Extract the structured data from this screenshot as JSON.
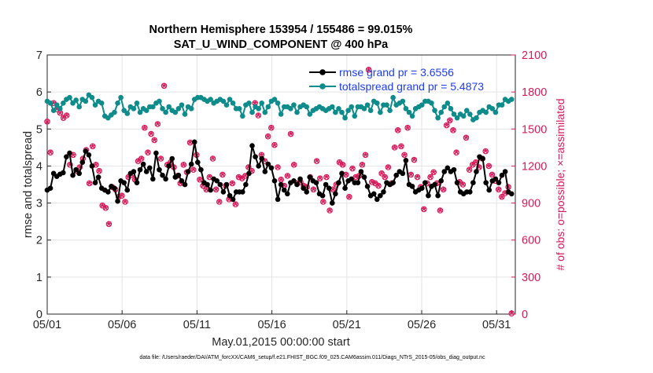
{
  "chart_data": {
    "type": "line",
    "title": [
      "Northern Hemisphere 153954 / 155486 = 99.015%",
      "SAT_U_WIND_COMPONENT @ 400 hPa"
    ],
    "xlabel": "May.01,2015 00:00:00 start",
    "ylabel": "rmse and totalspread",
    "y2label": "# of obs: o=possible; ×=assimilated",
    "footnote": "data file: /Users/raeder/DAI/ATM_forcXX/CAM6_setup/f.e21.FHIST_BGC.f09_025.CAM6assim.011/Diags_NTrS_2015-05/obs_diag_output.nc",
    "x_ticks": [
      "05/01",
      "05/06",
      "05/11",
      "05/16",
      "05/21",
      "05/26",
      "05/31"
    ],
    "x_tick_days": [
      0,
      5,
      10,
      15,
      20,
      25,
      30
    ],
    "xlim": [
      0,
      31.25
    ],
    "ylim": [
      0,
      7
    ],
    "y_ticks": [
      "0",
      "1",
      "2",
      "3",
      "4",
      "5",
      "6",
      "7"
    ],
    "y2lim": [
      0,
      2100
    ],
    "y2_ticks": [
      "0",
      "300",
      "600",
      "900",
      "1200",
      "1500",
      "1800",
      "2100"
    ],
    "grid": true,
    "legend": [
      "rmse grand pr = 3.6556",
      "totalspread grand pr = 5.4873"
    ],
    "legend_position": "top-right",
    "colors": {
      "rmse": "#000000",
      "spread": "#0e8b8b",
      "obs": "#d6195a",
      "legend_text": "#1e3cf0",
      "right_axis": "#d6195a"
    },
    "series": [
      {
        "name": "rmse",
        "axis": "left",
        "values": [
          3.35,
          3.4,
          3.8,
          3.72,
          3.78,
          3.82,
          4.25,
          4.35,
          3.75,
          3.9,
          3.8,
          4.1,
          4.4,
          4.3,
          4.0,
          3.55,
          3.7,
          3.4,
          3.35,
          3.3,
          3.45,
          3.4,
          3.05,
          3.6,
          3.55,
          3.35,
          3.8,
          3.85,
          3.55,
          3.9,
          4.05,
          3.85,
          3.95,
          3.65,
          4.35,
          3.9,
          3.75,
          3.65,
          4.0,
          4.2,
          3.7,
          3.75,
          3.6,
          3.5,
          3.85,
          4.05,
          4.65,
          4.1,
          3.9,
          3.55,
          3.5,
          3.35,
          3.65,
          3.6,
          3.5,
          3.3,
          3.5,
          3.2,
          3.1,
          3.3,
          3.3,
          3.3,
          3.5,
          3.8,
          4.55,
          4.25,
          4.0,
          4.2,
          3.85,
          4.05,
          3.95,
          3.6,
          3.1,
          3.5,
          3.35,
          3.25,
          3.55,
          3.6,
          3.5,
          3.65,
          3.4,
          3.3,
          3.7,
          3.6,
          3.55,
          3.25,
          3.2,
          3.5,
          3.4,
          3.0,
          3.25,
          3.55,
          3.8,
          3.4,
          3.6,
          3.65,
          3.55,
          3.55,
          3.85,
          3.7,
          3.45,
          3.2,
          3.25,
          3.1,
          3.2,
          3.3,
          3.55,
          3.5,
          3.55,
          3.75,
          3.85,
          3.8,
          4.15,
          3.5,
          3.45,
          3.3,
          3.35,
          3.4,
          3.55,
          3.2,
          3.45,
          3.5,
          3.2,
          3.6,
          3.85,
          3.95,
          3.85,
          3.9,
          3.55,
          3.3,
          3.25,
          3.3,
          3.3,
          3.55,
          3.85,
          4.25,
          4.2,
          3.55,
          3.35,
          3.6,
          3.65,
          3.55,
          3.75,
          3.85,
          3.3,
          3.25
        ]
      },
      {
        "name": "totalspread",
        "axis": "left",
        "values": [
          5.75,
          5.7,
          5.5,
          5.65,
          5.55,
          5.7,
          5.8,
          5.85,
          5.7,
          5.78,
          5.6,
          5.8,
          5.75,
          5.92,
          5.85,
          5.65,
          5.75,
          5.7,
          5.35,
          5.3,
          5.38,
          5.45,
          5.7,
          5.85,
          5.5,
          5.42,
          5.6,
          5.55,
          5.7,
          5.45,
          5.55,
          5.5,
          5.6,
          5.6,
          5.7,
          5.75,
          5.55,
          5.45,
          5.6,
          5.5,
          5.45,
          5.55,
          5.65,
          5.4,
          5.6,
          5.55,
          5.8,
          5.85,
          5.85,
          5.8,
          5.75,
          5.8,
          5.7,
          5.75,
          5.8,
          5.75,
          5.65,
          5.8,
          5.7,
          5.55,
          5.55,
          5.35,
          5.65,
          5.7,
          5.45,
          5.6,
          5.55,
          5.7,
          5.45,
          5.6,
          5.75,
          5.8,
          5.7,
          5.4,
          5.6,
          5.6,
          5.55,
          5.65,
          5.45,
          5.6,
          5.65,
          5.6,
          5.4,
          5.5,
          5.55,
          5.6,
          5.55,
          5.5,
          5.55,
          5.6,
          5.45,
          5.55,
          5.45,
          5.3,
          5.5,
          5.6,
          5.35,
          5.6,
          5.6,
          5.55,
          5.65,
          5.5,
          5.75,
          5.7,
          5.45,
          5.65,
          5.65,
          5.5,
          5.85,
          5.65,
          5.7,
          5.75,
          5.55,
          5.45,
          5.35,
          5.55,
          5.6,
          5.65,
          5.75,
          5.75,
          5.7,
          5.5,
          5.3,
          5.45,
          5.6,
          5.7,
          5.55,
          5.4,
          5.3,
          5.4,
          5.35,
          5.5,
          5.4,
          5.25,
          5.3,
          5.45,
          5.5,
          5.45,
          5.6,
          5.55,
          5.45,
          5.65,
          5.65,
          5.8,
          5.75,
          5.8
        ]
      },
      {
        "name": "obs_assimilated",
        "axis": "right",
        "values": [
          1550,
          1300,
          1700,
          1650,
          1620,
          1580,
          1600,
          1200,
          1280,
          1150,
          1180,
          1250,
          1320,
          1050,
          1350,
          1200,
          1150,
          870,
          850,
          720,
          1020,
          1000,
          940,
          950,
          900,
          1100,
          1120,
          1080,
          1230,
          1250,
          1500,
          1300,
          1450,
          1400,
          1530,
          1250,
          1840,
          1200,
          1220,
          1180,
          1110,
          1050,
          1200,
          1140,
          1380,
          1160,
          1280,
          1080,
          1030,
          1000,
          1100,
          1250,
          1000,
          900,
          1120,
          1030,
          920,
          1050,
          880,
          1100,
          1090,
          1110,
          1180,
          1150,
          1700,
          1600,
          1280,
          1230,
          1430,
          1500,
          1360,
          1180,
          1080,
          1030,
          1110,
          1450,
          1200,
          1050,
          1060,
          1030,
          1020,
          1100,
          1000,
          1230,
          1090,
          900,
          1100,
          830,
          1000,
          1040,
          1220,
          1200,
          1120,
          940,
          1170,
          1100,
          1110,
          1200,
          1280,
          1970,
          1060,
          1050,
          1030,
          1130,
          1100,
          1180,
          1050,
          1340,
          1480,
          1350,
          1280,
          1500,
          1120,
          1240,
          1100,
          1020,
          840,
          1050,
          1100,
          1140,
          1050,
          830,
          1000,
          1520,
          1560,
          1480,
          1300,
          1060,
          1040,
          1420,
          1160,
          1200,
          1220,
          1180,
          1250,
          1310,
          1190,
          1120,
          1070,
          1000,
          940,
          970,
          1020,
          0
        ]
      },
      {
        "name": "obs_possible",
        "axis": "right",
        "values": [
          1560,
          1310,
          1710,
          1660,
          1630,
          1590,
          1610,
          1210,
          1290,
          1160,
          1190,
          1260,
          1330,
          1060,
          1360,
          1210,
          1160,
          880,
          860,
          730,
          1030,
          1010,
          950,
          960,
          910,
          1110,
          1130,
          1090,
          1240,
          1260,
          1510,
          1310,
          1460,
          1410,
          1540,
          1260,
          1850,
          1210,
          1230,
          1190,
          1120,
          1060,
          1210,
          1150,
          1390,
          1170,
          1290,
          1090,
          1040,
          1010,
          1110,
          1260,
          1010,
          910,
          1130,
          1040,
          930,
          1060,
          890,
          1110,
          1100,
          1120,
          1190,
          1160,
          1710,
          1610,
          1290,
          1240,
          1440,
          1510,
          1370,
          1190,
          1090,
          1040,
          1120,
          1460,
          1210,
          1060,
          1070,
          1040,
          1030,
          1110,
          1010,
          1240,
          1100,
          910,
          1110,
          840,
          1010,
          1050,
          1230,
          1210,
          1130,
          950,
          1180,
          1110,
          1120,
          1210,
          1290,
          1980,
          1070,
          1060,
          1040,
          1140,
          1110,
          1190,
          1060,
          1350,
          1490,
          1360,
          1290,
          1510,
          1130,
          1250,
          1110,
          1030,
          850,
          1060,
          1110,
          1150,
          1060,
          840,
          1010,
          1530,
          1570,
          1490,
          1310,
          1070,
          1050,
          1430,
          1170,
          1210,
          1230,
          1190,
          1260,
          1320,
          1200,
          1130,
          1080,
          1010,
          950,
          980,
          1030,
          5
        ]
      }
    ]
  }
}
